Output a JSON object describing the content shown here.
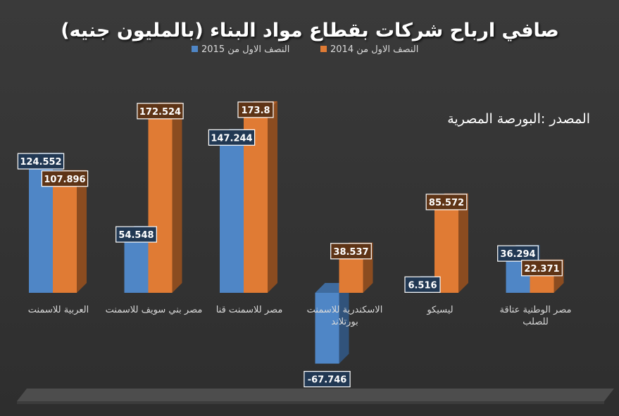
{
  "chart_data": {
    "type": "bar",
    "title": "صافي ارباح شركات بقطاع مواد البناء (بالمليون جنيه)",
    "source_note": "المصدر :البورصة المصرية",
    "categories": [
      "العربية للاسمنت",
      "مصر بني سويف للاسمنت",
      "مصر للاسمنت قنا",
      "الاسكندرية للاسمنت بورتلاند",
      "ليسيكو",
      "مصر الوطنية عتاقة للصلب"
    ],
    "series": [
      {
        "name": "النصف الاول من 2015",
        "color": "#4f86c6",
        "values": [
          124.552,
          54.548,
          147.244,
          -67.746,
          6.516,
          36.294
        ],
        "labels": [
          "124.552",
          "54.548",
          "147.244",
          "-67.746",
          "6.516",
          "36.294"
        ]
      },
      {
        "name": "النصف الاول من 2014",
        "color": "#e07b34",
        "values": [
          107.896,
          172.524,
          173.8,
          38.537,
          85.572,
          22.371
        ],
        "labels": [
          "107.896",
          "172.524",
          "173.8",
          "38.537",
          "85.572",
          "22.371"
        ]
      }
    ],
    "ylim": [
      -75,
      200
    ],
    "grid": false,
    "legend_position": "top"
  }
}
